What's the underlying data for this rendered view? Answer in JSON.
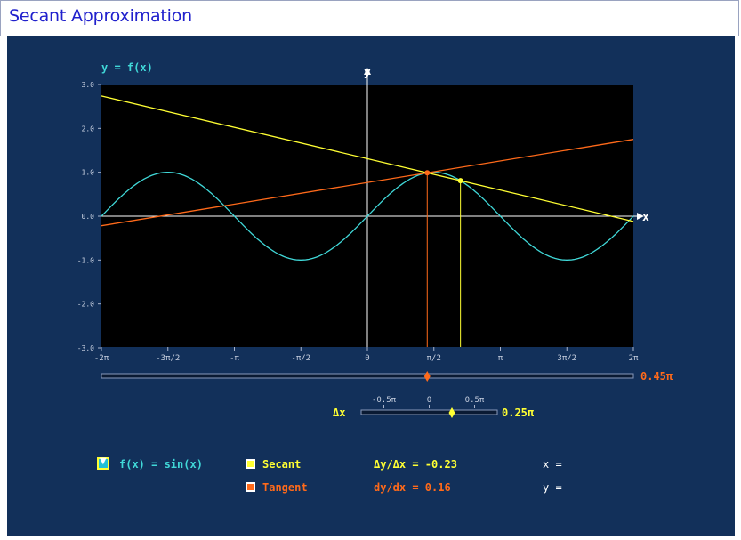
{
  "window": {
    "title": "Secant Approximation"
  },
  "graph": {
    "function_label": "y = f(x)",
    "y_axis_label": "y",
    "x_axis_label": "x",
    "y_ticks": [
      "3.0",
      "2.0",
      "1.0",
      "0.0",
      "-1.0",
      "-2.0",
      "-3.0"
    ],
    "x_ticks": [
      "-2π",
      "-3π/2",
      "-π",
      "-π/2",
      "0",
      "π/2",
      "π",
      "3π/2",
      "2π"
    ],
    "x_range": [
      -6.2832,
      6.2832
    ],
    "y_range": [
      -3,
      3
    ],
    "point_x": 1.4137,
    "delta_x": 0.7854
  },
  "x_slider": {
    "value_label": "0.45π",
    "value": 0.45
  },
  "dx_slider": {
    "label": "Δx",
    "ticks": [
      "-0.5π",
      "0",
      "0.5π"
    ],
    "value_label": "0.25π",
    "value": 0.25
  },
  "function_select": {
    "value": "f(x) = sin(x)"
  },
  "secant": {
    "label": "Secant",
    "slope_text": "Δy/Δx = -0.23",
    "x_readout": "x ="
  },
  "tangent": {
    "label": "Tangent",
    "slope_text": "dy/dx = 0.16",
    "y_readout": "y ="
  },
  "colors": {
    "background": "#12305a",
    "plot": "#000000",
    "curve": "#40d8d8",
    "secant": "#ffff33",
    "tangent": "#ff6a1a",
    "axis": "#ffffff",
    "title": "#2020cc"
  }
}
